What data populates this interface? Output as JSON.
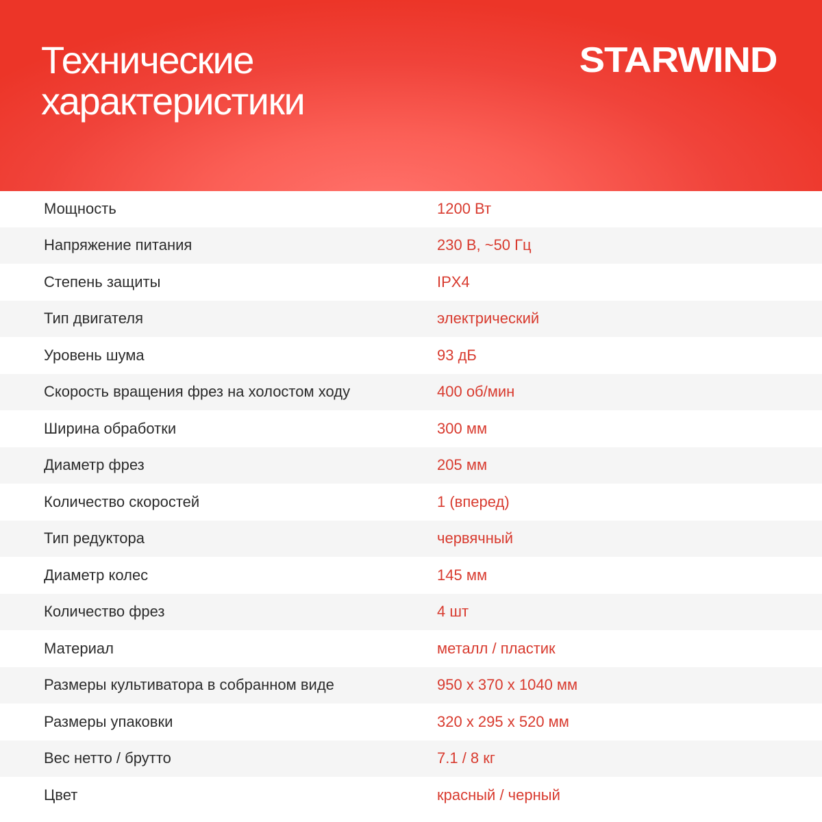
{
  "header": {
    "title_line1": "Технические",
    "title_line2": "характеристики",
    "brand": "STARWIND",
    "colors": {
      "header_red": "#ec3528",
      "header_light": "#ff726b",
      "value_red": "#d83a2e"
    }
  },
  "specs": [
    {
      "label": "Мощность",
      "value": "1200 Вт"
    },
    {
      "label": "Напряжение питания",
      "value": "230 В, ~50 Гц"
    },
    {
      "label": "Степень защиты",
      "value": "IPX4"
    },
    {
      "label": "Тип двигателя",
      "value": "электрический"
    },
    {
      "label": "Уровень шума",
      "value": "93 дБ"
    },
    {
      "label": "Скорость вращения фрез на холостом ходу",
      "value": "400 об/мин"
    },
    {
      "label": "Ширина обработки",
      "value": "300 мм"
    },
    {
      "label": "Диаметр фрез",
      "value": "205 мм"
    },
    {
      "label": "Количество скоростей",
      "value": "1 (вперед)"
    },
    {
      "label": "Тип редуктора",
      "value": "червячный"
    },
    {
      "label": "Диаметр колес",
      "value": "145 мм"
    },
    {
      "label": "Количество фрез",
      "value": "4 шт"
    },
    {
      "label": "Материал",
      "value": "металл / пластик"
    },
    {
      "label": "Размеры культиватора в собранном виде",
      "value": "950 x 370 x 1040 мм"
    },
    {
      "label": "Размеры упаковки",
      "value": "320 x 295 x 520 мм"
    },
    {
      "label": "Вес нетто / брутто",
      "value": "7.1 / 8 кг"
    },
    {
      "label": "Цвет",
      "value": "красный / черный"
    }
  ]
}
